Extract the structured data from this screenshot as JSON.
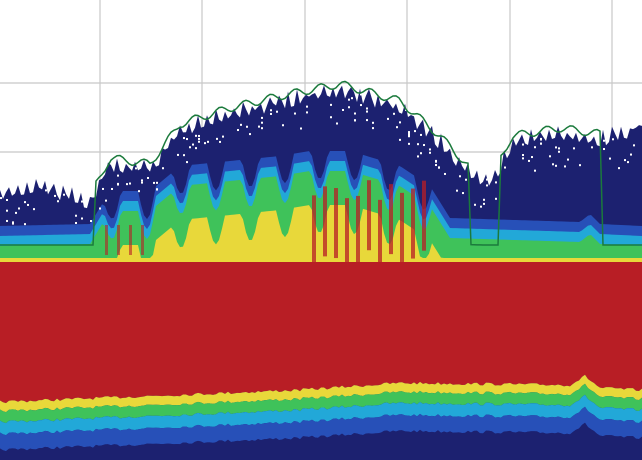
{
  "chart_data": {
    "type": "spectrum",
    "grid": true,
    "trace_color": "#1b7a3c",
    "colormap": [
      "#1c2170",
      "#2750b8",
      "#22a8d8",
      "#3fc25a",
      "#e8d83a",
      "#b81e25"
    ]
  }
}
